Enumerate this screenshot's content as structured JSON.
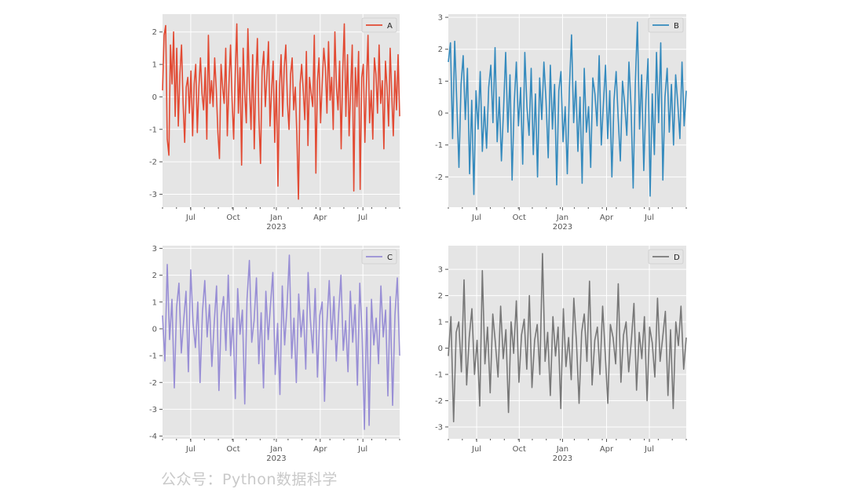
{
  "watermark": "公众号：Python数据科学",
  "chart_data": [
    {
      "type": "line",
      "series_name": "A",
      "color": "#E24A33",
      "ylim": [
        -3.4,
        2.55
      ],
      "yticks": [
        -3,
        -2,
        -1,
        0,
        1,
        2
      ],
      "xticks": [
        "Jul",
        "Oct",
        "Jan\n2023",
        "Apr",
        "Jul"
      ],
      "legend_position": "upper right",
      "grid": true,
      "x_start": "2022-05-01",
      "x_end": "2023-09-30",
      "values": [
        0.2,
        1.9,
        2.2,
        -1.3,
        -1.8,
        1.6,
        0.4,
        2.0,
        -0.6,
        1.5,
        -0.9,
        0.7,
        1.6,
        -0.2,
        -1.4,
        0.3,
        0.6,
        -0.5,
        0.8,
        -1.2,
        0.4,
        1.0,
        -1.1,
        0.3,
        1.2,
        0.1,
        -0.4,
        0.9,
        -1.3,
        1.9,
        -0.2,
        0.5,
        -0.3,
        1.2,
        0.2,
        -1.1,
        -1.9,
        1.0,
        0.3,
        -0.2,
        1.5,
        -1.2,
        0.4,
        1.6,
        -0.1,
        -1.3,
        0.7,
        2.25,
        -0.5,
        0.9,
        -2.1,
        1.5,
        0.1,
        -0.8,
        2.1,
        0.3,
        -1.0,
        1.3,
        -1.6,
        0.5,
        1.8,
        -0.7,
        -2.05,
        0.8,
        1.4,
        -0.3,
        0.6,
        1.7,
        -0.9,
        0.2,
        1.1,
        -1.4,
        0.5,
        -2.75,
        0.3,
        1.3,
        -0.6,
        0.9,
        1.6,
        -0.2,
        -1.0,
        0.7,
        1.2,
        -0.4,
        0.3,
        -1.2,
        -3.15,
        0.4,
        1.0,
        0.2,
        -0.7,
        1.4,
        -1.5,
        0.6,
        0.1,
        -0.3,
        1.9,
        -2.35,
        0.5,
        1.2,
        -0.8,
        0.4,
        1.5,
        0.9,
        -0.5,
        1.7,
        -0.1,
        0.6,
        -1.0,
        2.0,
        0.3,
        -0.4,
        1.1,
        -1.6,
        0.8,
        2.25,
        -0.6,
        1.3,
        -1.2,
        0.2,
        1.6,
        -2.9,
        0.9,
        -0.3,
        1.4,
        -2.85,
        0.6,
        1.0,
        -1.4,
        0.4,
        1.9,
        -0.8,
        0.2,
        -1.3,
        1.2,
        0.7,
        -0.5,
        1.6,
        -0.2,
        0.5,
        -1.6,
        1.1,
        0.3,
        -0.9,
        1.5,
        0.1,
        -1.2,
        0.8,
        -0.4,
        1.3,
        -0.6
      ]
    },
    {
      "type": "line",
      "series_name": "B",
      "color": "#348ABD",
      "ylim": [
        -2.95,
        3.1
      ],
      "yticks": [
        -2,
        -1,
        0,
        1,
        2,
        3
      ],
      "xticks": [
        "Jul",
        "Oct",
        "Jan\n2023",
        "Apr",
        "Jul"
      ],
      "legend_position": "upper right",
      "grid": true,
      "x_start": "2022-05-01",
      "x_end": "2023-09-30",
      "values": [
        1.6,
        2.2,
        -0.8,
        2.25,
        0.3,
        -1.7,
        0.9,
        1.8,
        -0.2,
        1.4,
        -1.9,
        0.4,
        -2.55,
        0.7,
        -0.5,
        1.3,
        -1.2,
        0.2,
        -1.1,
        0.8,
        1.5,
        -0.3,
        2.05,
        -0.9,
        0.5,
        -1.5,
        0.1,
        1.9,
        -0.6,
        1.2,
        -2.1,
        0.3,
        1.6,
        -0.4,
        0.8,
        -1.6,
        1.9,
        0.2,
        -0.7,
        1.4,
        -1.3,
        0.6,
        -2.0,
        1.1,
        -0.2,
        1.6,
        0.4,
        -1.4,
        1.5,
        -0.5,
        0.9,
        -2.25,
        0.7,
        1.3,
        -0.9,
        0.2,
        -1.9,
        0.8,
        2.45,
        -0.3,
        1.0,
        -1.2,
        0.5,
        -2.2,
        1.4,
        -0.6,
        0.2,
        -1.7,
        1.1,
        0.6,
        -0.4,
        1.8,
        -1.0,
        0.3,
        1.5,
        -0.8,
        0.7,
        -2.0,
        0.4,
        1.3,
        -0.2,
        -1.5,
        1.0,
        0.3,
        -0.7,
        1.6,
        0.2,
        -2.35,
        0.9,
        2.85,
        -0.5,
        1.2,
        -1.8,
        0.4,
        1.7,
        -2.6,
        0.6,
        -1.3,
        1.9,
        -0.3,
        2.2,
        -2.1,
        0.5,
        1.4,
        -0.6,
        0.9,
        -1.0,
        1.2,
        0.3,
        -0.8,
        1.6,
        -0.4,
        0.7
      ]
    },
    {
      "type": "line",
      "series_name": "C",
      "color": "#988ED5",
      "ylim": [
        -4.1,
        3.1
      ],
      "yticks": [
        -4,
        -3,
        -2,
        -1,
        0,
        1,
        2,
        3
      ],
      "xticks": [
        "Jul",
        "Oct",
        "Jan\n2023",
        "Apr",
        "Jul"
      ],
      "legend_position": "upper right",
      "grid": true,
      "x_start": "2022-05-01",
      "x_end": "2023-09-30",
      "values": [
        0.5,
        -1.2,
        2.4,
        -0.4,
        1.1,
        -2.2,
        0.8,
        1.7,
        -0.9,
        0.3,
        1.4,
        -1.6,
        2.2,
        0.2,
        -0.7,
        1.0,
        -2.0,
        0.6,
        1.8,
        -0.3,
        0.9,
        -1.4,
        0.2,
        1.6,
        -2.3,
        0.5,
        1.2,
        -0.8,
        2.0,
        -1.0,
        0.4,
        -2.6,
        1.5,
        -0.2,
        0.7,
        -2.8,
        1.1,
        2.55,
        -0.5,
        0.3,
        1.9,
        -1.3,
        0.6,
        -2.2,
        1.4,
        -0.4,
        0.9,
        2.1,
        -1.7,
        0.2,
        -2.45,
        1.6,
        -0.6,
        0.8,
        2.75,
        -1.1,
        0.4,
        -2.0,
        1.3,
        -0.3,
        0.7,
        -1.5,
        2.1,
        0.3,
        -0.9,
        1.5,
        -1.8,
        0.5,
        1.0,
        -2.7,
        0.2,
        1.8,
        -0.4,
        1.2,
        -1.2,
        0.6,
        2.0,
        -0.8,
        0.3,
        -1.6,
        1.4,
        -0.5,
        0.9,
        -2.1,
        1.7,
        -0.2,
        -3.75,
        0.8,
        -3.6,
        1.1,
        -0.6,
        0.4,
        -1.3,
        1.6,
        -0.3,
        0.7,
        -2.5,
        1.2,
        -2.85,
        0.5,
        1.9,
        -1.0
      ]
    },
    {
      "type": "line",
      "series_name": "D",
      "color": "#777777",
      "ylim": [
        -3.45,
        3.9
      ],
      "yticks": [
        -3,
        -2,
        -1,
        0,
        1,
        2,
        3
      ],
      "xticks": [
        "Jul",
        "Oct",
        "Jan\n2023",
        "Apr",
        "Jul"
      ],
      "legend_position": "upper right",
      "grid": true,
      "x_start": "2022-05-01",
      "x_end": "2023-09-30",
      "values": [
        -0.3,
        1.2,
        -2.8,
        0.6,
        1.0,
        -0.9,
        2.6,
        -1.4,
        0.4,
        1.5,
        -1.0,
        0.3,
        -2.2,
        2.95,
        -0.6,
        0.8,
        -1.7,
        1.3,
        0.2,
        -1.1,
        1.6,
        -0.4,
        0.7,
        -2.45,
        1.0,
        -0.2,
        1.8,
        -1.3,
        0.5,
        1.1,
        -0.8,
        2.0,
        -1.5,
        0.3,
        0.9,
        -1.0,
        3.6,
        -0.5,
        0.6,
        -1.8,
        1.2,
        -0.3,
        0.8,
        -2.3,
        1.5,
        -0.7,
        0.4,
        -1.2,
        1.9,
        0.2,
        -2.1,
        0.6,
        1.3,
        -0.5,
        2.55,
        -1.4,
        0.3,
        0.8,
        -1.0,
        1.6,
        -0.2,
        -2.1,
        0.9,
        0.4,
        -0.6,
        2.45,
        -1.3,
        0.5,
        1.0,
        -0.9,
        0.3,
        1.7,
        -1.6,
        0.6,
        -0.4,
        1.2,
        -2.0,
        0.8,
        0.2,
        -1.1,
        1.9,
        -0.5,
        0.4,
        1.4,
        -1.8,
        0.7,
        -2.3,
        1.0,
        0.1,
        1.6,
        -0.8,
        0.4
      ]
    }
  ]
}
